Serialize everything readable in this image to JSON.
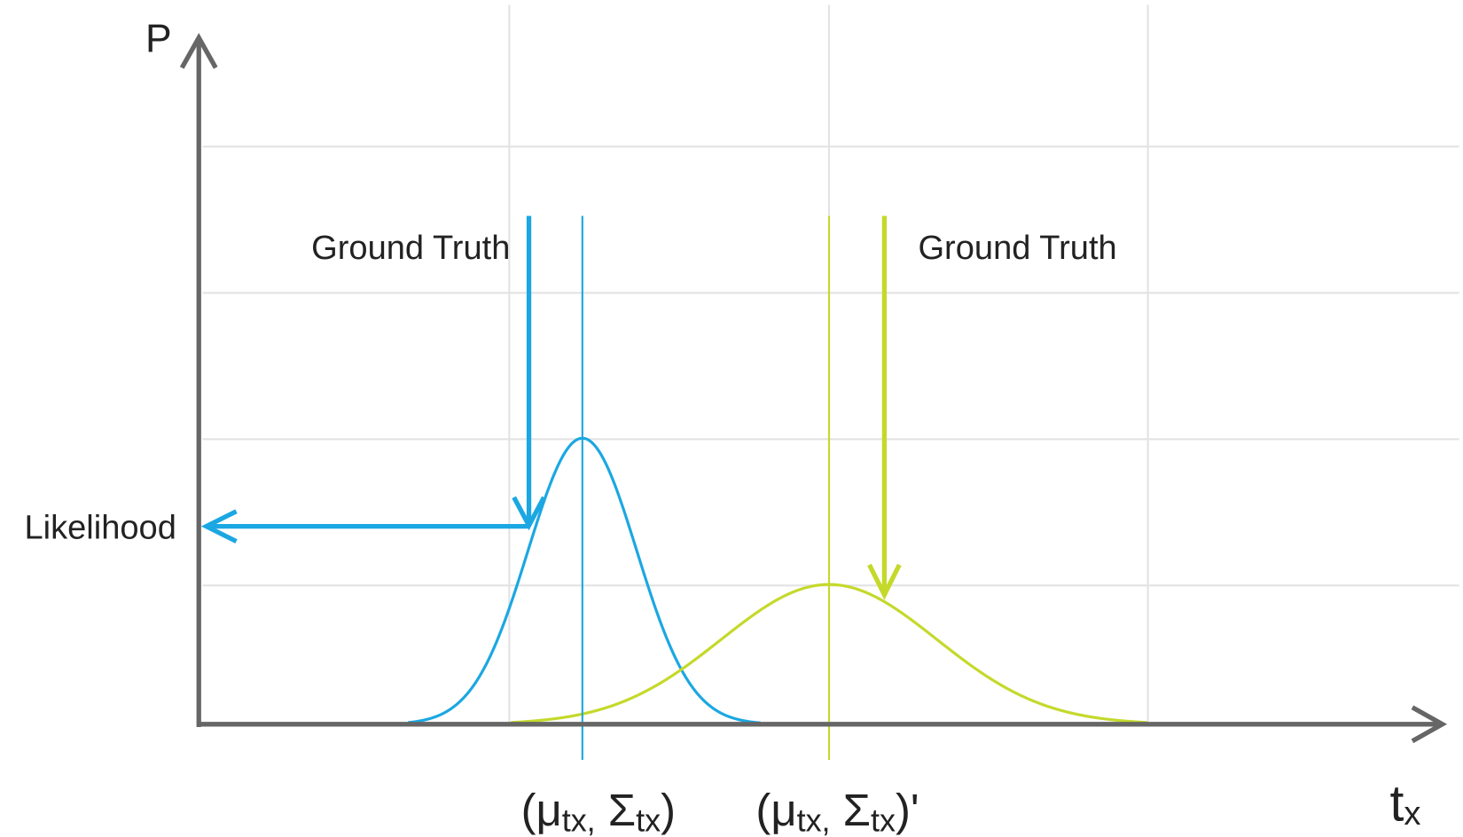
{
  "axes": {
    "y_label": "P",
    "x_label": {
      "base": "t",
      "sub": "x"
    }
  },
  "annotations": {
    "ground_truth_left": "Ground Truth",
    "ground_truth_right": "Ground Truth",
    "likelihood": "Likelihood"
  },
  "params": [
    {
      "open": "(μ",
      "sub1": "tx,",
      "sigma": " Σ",
      "sub2": "tx",
      "close": ")"
    },
    {
      "open": "(μ",
      "sub1": "tx,",
      "sigma": " Σ",
      "sub2": "tx",
      "close": ")'"
    }
  ]
}
